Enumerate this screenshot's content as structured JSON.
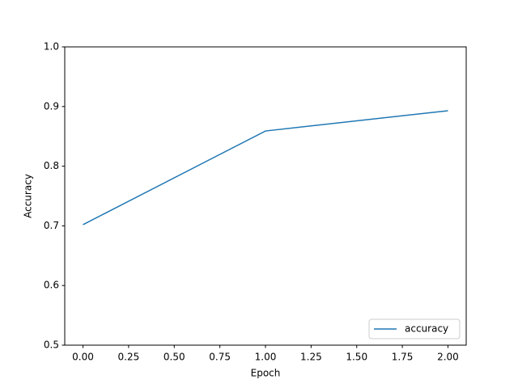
{
  "chart_data": {
    "type": "line",
    "xlabel": "Epoch",
    "ylabel": "Accuracy",
    "x": [
      0,
      1,
      2
    ],
    "series": [
      {
        "name": "accuracy",
        "color": "#1f77b4",
        "values": [
          0.702,
          0.859,
          0.893
        ]
      }
    ],
    "xlim": [
      -0.1,
      2.1
    ],
    "xticks": [
      {
        "value": 0,
        "label": "0.00"
      },
      {
        "value": 0.25,
        "label": "0.25"
      },
      {
        "value": 0.5,
        "label": "0.50"
      },
      {
        "value": 0.75,
        "label": "0.75"
      },
      {
        "value": 1,
        "label": "1.00"
      },
      {
        "value": 1.25,
        "label": "1.25"
      },
      {
        "value": 1.5,
        "label": "1.50"
      },
      {
        "value": 1.75,
        "label": "1.75"
      },
      {
        "value": 2,
        "label": "2.00"
      }
    ],
    "ylim": [
      0.5,
      1.0
    ],
    "yticks": [
      0.5,
      0.6,
      0.7,
      0.8,
      0.9,
      {
        "value": 1.0,
        "label": "1.0"
      }
    ],
    "grid": false,
    "legend": "lower right"
  }
}
